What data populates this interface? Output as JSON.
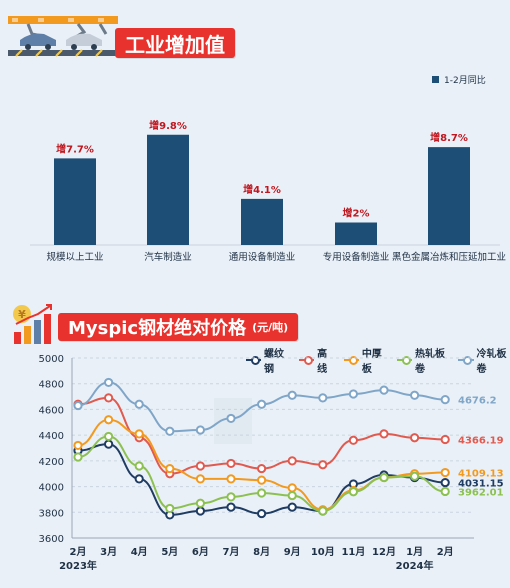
{
  "sections": {
    "top_title": "工业增加值",
    "bottom_title": "Myspic钢材绝对价格",
    "bottom_unit": "(元/吨)"
  },
  "colors": {
    "accent": "#e8322d",
    "bar": "#1d4e75",
    "label_red": "#c0161e"
  },
  "chart_data": [
    {
      "type": "bar",
      "categories": [
        "规模以上工业",
        "汽车制造业",
        "通用设备制造业",
        "专用设备制造业",
        "黑色金属冶炼和压延加工业"
      ],
      "series": [
        {
          "name": "1-2月同比",
          "values": [
            7.7,
            9.8,
            4.1,
            2,
            8.7
          ]
        }
      ],
      "data_labels": [
        "增7.7%",
        "增9.8%",
        "增4.1%",
        "增2%",
        "增8.7%"
      ],
      "ylim": [
        0,
        12
      ],
      "grid": false,
      "legend": "top-right"
    },
    {
      "type": "line",
      "title": "Myspic钢材绝对价格",
      "ylabel": "(元/吨)",
      "x": [
        "2月",
        "3月",
        "4月",
        "5月",
        "6月",
        "7月",
        "8月",
        "9月",
        "10月",
        "11月",
        "12月",
        "1月",
        "2月"
      ],
      "x_year_labels": [
        "2023年",
        "2024年"
      ],
      "yticks": [
        3600,
        3800,
        4000,
        4200,
        4400,
        4600,
        4800,
        5000
      ],
      "ylim": [
        3600,
        5000
      ],
      "grid": true,
      "legend": "top",
      "series": [
        {
          "name": "螺纹钢",
          "color": "#1f3c63",
          "values": [
            4280,
            4330,
            4060,
            3780,
            3810,
            3840,
            3790,
            3840,
            3810,
            4020,
            4090,
            4070,
            4031.15
          ],
          "end_label": "4031.15"
        },
        {
          "name": "高线",
          "color": "#e05a4f",
          "values": [
            4640,
            4690,
            4380,
            4100,
            4160,
            4180,
            4140,
            4200,
            4170,
            4360,
            4410,
            4380,
            4366.19
          ],
          "end_label": "4366.19"
        },
        {
          "name": "中厚板",
          "color": "#f29a1f",
          "values": [
            4320,
            4520,
            4410,
            4140,
            4060,
            4060,
            4050,
            3990,
            3820,
            3970,
            4070,
            4100,
            4109.13
          ],
          "end_label": "4109.13"
        },
        {
          "name": "热轧板卷",
          "color": "#8cc152",
          "values": [
            4230,
            4390,
            4160,
            3830,
            3870,
            3920,
            3950,
            3930,
            3810,
            3960,
            4070,
            4080,
            3962.01
          ],
          "end_label": "3962.01"
        },
        {
          "name": "冷轧板卷",
          "color": "#7fa6c8",
          "values": [
            4630,
            4810,
            4640,
            4430,
            4440,
            4530,
            4640,
            4710,
            4690,
            4720,
            4750,
            4710,
            4676.2
          ],
          "end_label": "4676.2"
        }
      ]
    }
  ]
}
